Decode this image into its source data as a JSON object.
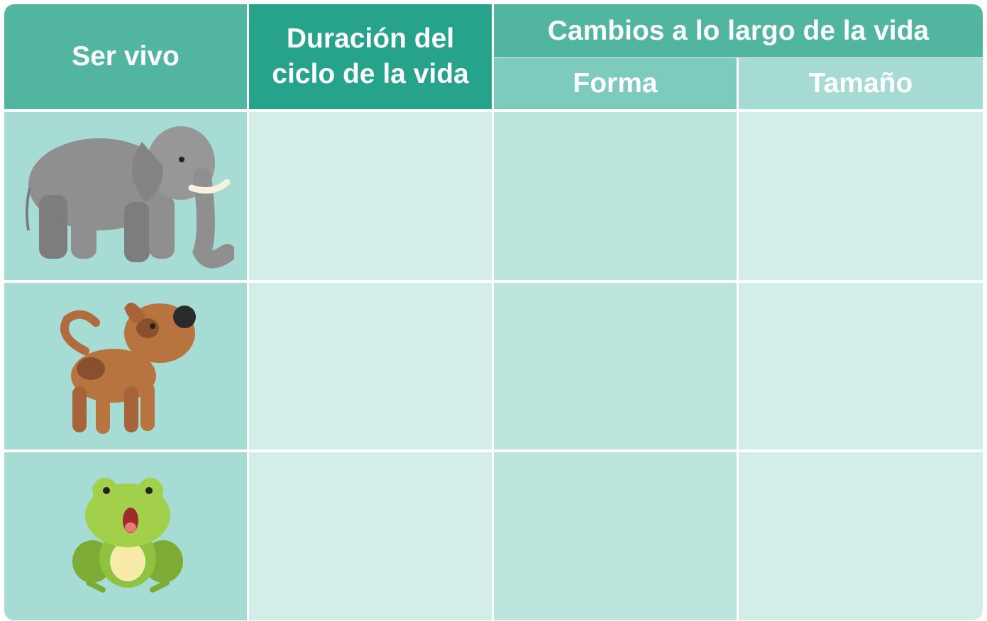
{
  "table": {
    "header": {
      "col0": "Ser vivo",
      "col1": [
        "Duración del",
        "ciclo de la vida"
      ],
      "group": "Cambios a lo largo de la vida",
      "sub": [
        "Forma",
        "Tamaño"
      ]
    }
  }
}
